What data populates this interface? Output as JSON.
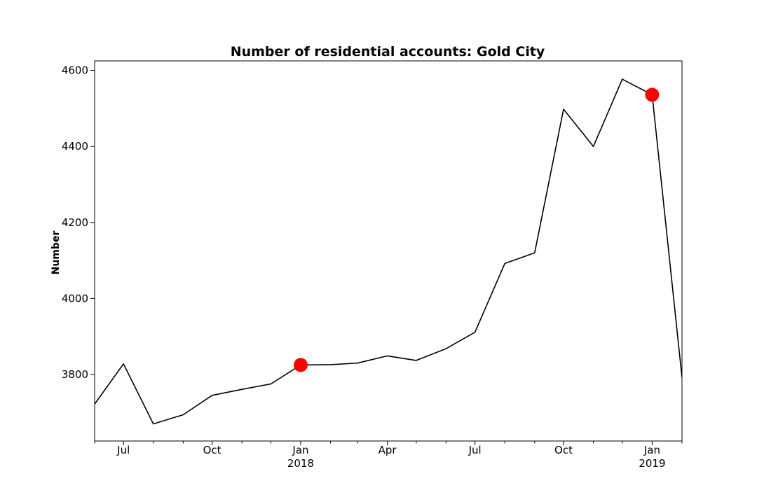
{
  "chart_data": {
    "type": "line",
    "title": "Number of residential accounts: Gold City",
    "xlabel": "",
    "ylabel": "Number",
    "xlim": [
      "2017-06-01",
      "2019-02-01"
    ],
    "ylim": [
      3625,
      4625
    ],
    "x_ticks": [
      {
        "date": "2017-07-01",
        "label": "Jul",
        "sublabel": ""
      },
      {
        "date": "2017-10-01",
        "label": "Oct",
        "sublabel": ""
      },
      {
        "date": "2018-01-01",
        "label": "Jan",
        "sublabel": "2018"
      },
      {
        "date": "2018-04-01",
        "label": "Apr",
        "sublabel": ""
      },
      {
        "date": "2018-07-01",
        "label": "Jul",
        "sublabel": ""
      },
      {
        "date": "2018-10-01",
        "label": "Oct",
        "sublabel": ""
      },
      {
        "date": "2019-01-01",
        "label": "Jan",
        "sublabel": "2019"
      }
    ],
    "y_ticks": [
      3800,
      4000,
      4200,
      4400,
      4600
    ],
    "grid": false,
    "series": [
      {
        "name": "",
        "color": "#000000",
        "points": [
          {
            "x": "2017-06-01",
            "y": 3722
          },
          {
            "x": "2017-07-01",
            "y": 3828
          },
          {
            "x": "2017-08-01",
            "y": 3670
          },
          {
            "x": "2017-09-01",
            "y": 3694
          },
          {
            "x": "2017-10-01",
            "y": 3745
          },
          {
            "x": "2017-11-01",
            "y": 3761
          },
          {
            "x": "2017-12-01",
            "y": 3775
          },
          {
            "x": "2018-01-01",
            "y": 3825
          },
          {
            "x": "2018-02-01",
            "y": 3826
          },
          {
            "x": "2018-03-01",
            "y": 3830
          },
          {
            "x": "2018-04-01",
            "y": 3849
          },
          {
            "x": "2018-05-01",
            "y": 3837
          },
          {
            "x": "2018-06-01",
            "y": 3868
          },
          {
            "x": "2018-07-01",
            "y": 3911
          },
          {
            "x": "2018-08-01",
            "y": 4092
          },
          {
            "x": "2018-09-01",
            "y": 4120
          },
          {
            "x": "2018-10-01",
            "y": 4498
          },
          {
            "x": "2018-11-01",
            "y": 4400
          },
          {
            "x": "2018-12-01",
            "y": 4577
          },
          {
            "x": "2019-01-01",
            "y": 4536
          },
          {
            "x": "2019-02-01",
            "y": 3792
          }
        ]
      }
    ],
    "highlights": [
      {
        "x": "2018-01-01",
        "y": 3825,
        "color": "#ff0000"
      },
      {
        "x": "2019-01-01",
        "y": 4536,
        "color": "#ff0000"
      }
    ]
  }
}
